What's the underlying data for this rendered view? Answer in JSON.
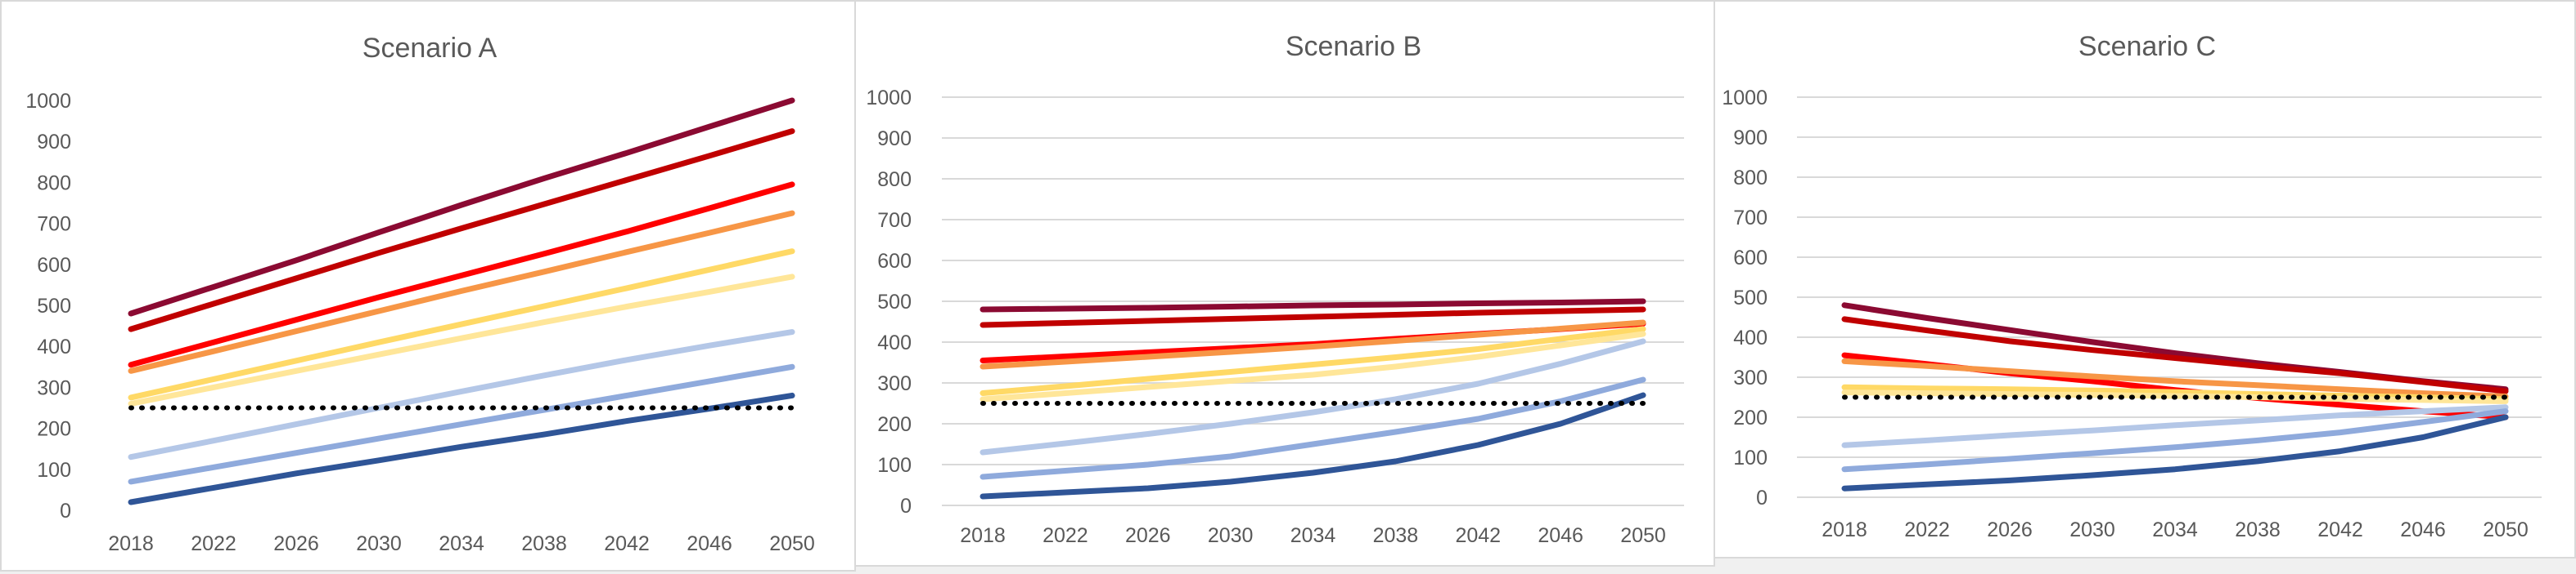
{
  "chart_data": [
    {
      "type": "line",
      "title": "Scenario A",
      "x": [
        "2018",
        "2022",
        "2026",
        "2030",
        "2034",
        "2038",
        "2042",
        "2046",
        "2050"
      ],
      "ylim": [
        0,
        1000
      ],
      "yticks": [
        0,
        100,
        200,
        300,
        400,
        500,
        600,
        700,
        800,
        900,
        1000
      ],
      "grid": false,
      "legend": "none",
      "series": [
        {
          "color": "#8b0a32",
          "values": [
            480,
            545,
            610,
            678,
            745,
            810,
            872,
            936,
            1000
          ]
        },
        {
          "color": "#c00000",
          "values": [
            442,
            504,
            566,
            628,
            688,
            747,
            806,
            865,
            925
          ]
        },
        {
          "color": "#ff0000",
          "values": [
            355,
            410,
            465,
            520,
            573,
            626,
            680,
            737,
            795
          ]
        },
        {
          "color": "#f79646",
          "values": [
            340,
            388,
            437,
            486,
            535,
            582,
            630,
            677,
            725
          ]
        },
        {
          "color": "#ffd966",
          "values": [
            275,
            320,
            365,
            410,
            454,
            498,
            542,
            587,
            632
          ]
        },
        {
          "color": "#ffe699",
          "values": [
            260,
            300,
            340,
            380,
            420,
            459,
            497,
            533,
            570
          ]
        },
        {
          "color": "#b4c7e7",
          "values": [
            130,
            170,
            210,
            250,
            290,
            329,
            367,
            402,
            435
          ]
        },
        {
          "color": "#8faadc",
          "values": [
            70,
            105,
            140,
            175,
            210,
            245,
            280,
            315,
            350
          ]
        },
        {
          "color": "#2f5597",
          "values": [
            20,
            55,
            90,
            122,
            155,
            185,
            218,
            248,
            280
          ]
        },
        {
          "color": "#000000",
          "style": "dotted",
          "values": [
            250,
            250,
            250,
            250,
            250,
            250,
            250,
            250,
            250
          ]
        }
      ]
    },
    {
      "type": "line",
      "title": "Scenario B",
      "x": [
        "2018",
        "2022",
        "2026",
        "2030",
        "2034",
        "2038",
        "2042",
        "2046",
        "2050"
      ],
      "ylim": [
        0,
        1000
      ],
      "yticks": [
        0,
        100,
        200,
        300,
        400,
        500,
        600,
        700,
        800,
        900,
        1000
      ],
      "grid": true,
      "legend": "none",
      "series": [
        {
          "color": "#8b0a32",
          "values": [
            480,
            482,
            484,
            487,
            490,
            492,
            495,
            497,
            500
          ]
        },
        {
          "color": "#c00000",
          "values": [
            442,
            447,
            452,
            457,
            462,
            467,
            472,
            476,
            480
          ]
        },
        {
          "color": "#ff0000",
          "values": [
            355,
            365,
            375,
            385,
            395,
            408,
            420,
            432,
            445
          ]
        },
        {
          "color": "#f79646",
          "values": [
            340,
            352,
            364,
            376,
            389,
            403,
            418,
            433,
            448
          ]
        },
        {
          "color": "#ffd966",
          "values": [
            275,
            292,
            310,
            327,
            345,
            363,
            383,
            408,
            432
          ]
        },
        {
          "color": "#ffe699",
          "values": [
            260,
            275,
            290,
            305,
            320,
            340,
            364,
            392,
            420
          ]
        },
        {
          "color": "#b4c7e7",
          "values": [
            130,
            152,
            175,
            200,
            228,
            260,
            298,
            347,
            402
          ]
        },
        {
          "color": "#8faadc",
          "values": [
            70,
            85,
            100,
            120,
            150,
            180,
            212,
            255,
            308
          ]
        },
        {
          "color": "#2f5597",
          "values": [
            22,
            32,
            42,
            58,
            80,
            108,
            148,
            200,
            270
          ]
        },
        {
          "color": "#000000",
          "style": "dotted",
          "values": [
            250,
            250,
            250,
            250,
            250,
            250,
            250,
            250,
            250
          ]
        }
      ]
    },
    {
      "type": "line",
      "title": "Scenario C",
      "x": [
        "2018",
        "2022",
        "2026",
        "2030",
        "2034",
        "2038",
        "2042",
        "2046",
        "2050"
      ],
      "ylim": [
        0,
        1000
      ],
      "yticks": [
        0,
        100,
        200,
        300,
        400,
        500,
        600,
        700,
        800,
        900,
        1000
      ],
      "grid": true,
      "legend": "none",
      "series": [
        {
          "color": "#8b0a32",
          "values": [
            480,
            448,
            418,
            388,
            360,
            335,
            313,
            290,
            270
          ]
        },
        {
          "color": "#c00000",
          "values": [
            445,
            417,
            390,
            368,
            348,
            328,
            310,
            288,
            265
          ]
        },
        {
          "color": "#ff0000",
          "values": [
            355,
            333,
            310,
            290,
            268,
            248,
            231,
            215,
            200
          ]
        },
        {
          "color": "#f79646",
          "values": [
            340,
            328,
            315,
            302,
            290,
            280,
            270,
            260,
            252
          ]
        },
        {
          "color": "#ffd966",
          "values": [
            275,
            272,
            270,
            267,
            263,
            258,
            254,
            250,
            245
          ]
        },
        {
          "color": "#ffe699",
          "values": [
            262,
            260,
            258,
            256,
            253,
            250,
            246,
            243,
            240
          ]
        },
        {
          "color": "#b4c7e7",
          "values": [
            130,
            142,
            155,
            167,
            180,
            192,
            205,
            215,
            225
          ]
        },
        {
          "color": "#8faadc",
          "values": [
            70,
            82,
            96,
            110,
            125,
            142,
            162,
            188,
            215
          ]
        },
        {
          "color": "#2f5597",
          "values": [
            22,
            32,
            42,
            55,
            70,
            90,
            115,
            150,
            200
          ]
        },
        {
          "color": "#000000",
          "style": "dotted",
          "values": [
            250,
            250,
            250,
            250,
            250,
            250,
            250,
            250,
            250
          ]
        }
      ]
    }
  ]
}
